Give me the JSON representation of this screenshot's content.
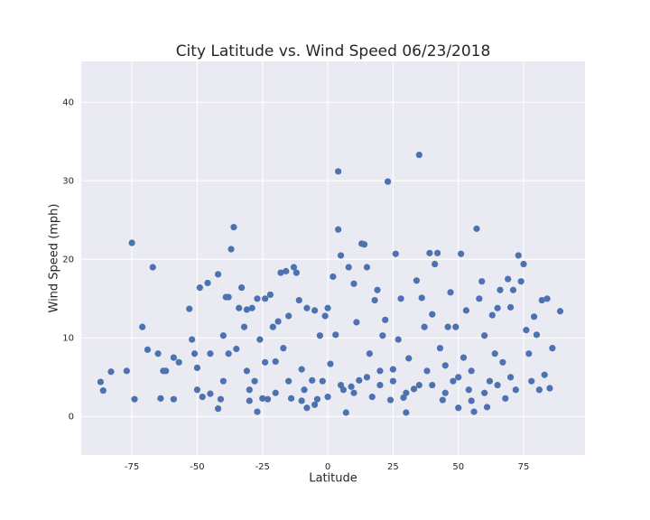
{
  "chart_data": {
    "type": "scatter",
    "title": "City Latitude vs. Wind Speed 06/23/2018",
    "x_label": "Latitude",
    "y_label": "Wind Speed (mph)",
    "xlim": [
      -94.4,
      98.5
    ],
    "ylim": [
      -4.9,
      45.2
    ],
    "xticks": [
      -75,
      -50,
      -25,
      0,
      25,
      50,
      75
    ],
    "yticks": [
      0,
      10,
      20,
      30,
      40
    ],
    "grid": true,
    "background": "#eaeaf2",
    "series": [
      {
        "color": "#4c72b0",
        "x": [
          -87,
          -86,
          -83,
          -77,
          -75,
          -74,
          -71,
          -69,
          -67,
          -65,
          -64,
          -63,
          -62,
          -59,
          -59,
          -57,
          -53,
          -52,
          -51,
          -50,
          -50,
          -49,
          -48,
          -46,
          -45,
          -45,
          -42,
          -42,
          -41,
          -40,
          -40,
          -39,
          -38,
          -38,
          -37,
          -36,
          -35,
          -34,
          -33,
          -32,
          -31,
          -31,
          -30,
          -29,
          -28,
          -27,
          -27,
          -26,
          -25,
          -24,
          -24,
          -23,
          -22,
          -21,
          -20,
          -19,
          -18,
          -17,
          -16,
          -15,
          -15,
          -14,
          -13,
          -12,
          -11,
          -10,
          -9,
          -8,
          -8,
          -6,
          -5,
          -4,
          -3,
          -2,
          -1,
          0,
          1,
          2,
          3,
          4,
          4,
          5,
          6,
          7,
          8,
          9,
          10,
          11,
          12,
          13,
          14,
          15,
          16,
          17,
          18,
          19,
          20,
          21,
          22,
          23,
          24,
          25,
          26,
          27,
          28,
          29,
          30,
          31,
          33,
          34,
          35,
          36,
          37,
          38,
          39,
          40,
          41,
          42,
          43,
          44,
          45,
          46,
          47,
          48,
          49,
          50,
          51,
          52,
          53,
          54,
          55,
          56,
          57,
          58,
          59,
          60,
          61,
          62,
          63,
          64,
          65,
          66,
          67,
          68,
          69,
          70,
          71,
          72,
          73,
          74,
          75,
          76,
          77,
          78,
          79,
          80,
          81,
          82,
          83,
          84,
          85,
          86,
          89,
          -20,
          -10,
          0,
          5,
          10,
          15,
          20,
          30,
          40,
          45,
          50,
          55,
          60,
          65,
          70,
          -30,
          -5,
          25,
          35
        ],
        "values": [
          4.4,
          3.3,
          5.7,
          5.8,
          22.1,
          2.2,
          11.4,
          8.5,
          19,
          8,
          2.3,
          5.8,
          5.8,
          7.5,
          2.2,
          6.9,
          13.7,
          9.8,
          8,
          6.2,
          3.4,
          16.4,
          2.5,
          17,
          8,
          2.9,
          18.1,
          1,
          2.2,
          10.3,
          4.5,
          15.2,
          15.2,
          8,
          21.3,
          24.1,
          8.6,
          13.8,
          16.4,
          11.4,
          13.6,
          5.8,
          3.4,
          13.8,
          4.5,
          0.6,
          15,
          9.8,
          2.3,
          15,
          6.9,
          2.2,
          15.5,
          11.4,
          7,
          12.1,
          18.3,
          8.7,
          18.5,
          12.8,
          4.5,
          2.3,
          19,
          18.3,
          14.8,
          6,
          3.4,
          13.8,
          1.1,
          4.6,
          13.5,
          2.2,
          10.3,
          4.5,
          12.8,
          13.8,
          6.7,
          17.8,
          10.4,
          31.2,
          23.8,
          20.5,
          3.4,
          0.5,
          19,
          3.8,
          16.9,
          12,
          4.6,
          22,
          21.9,
          19,
          8,
          2.5,
          14.8,
          16.1,
          5.8,
          10.3,
          12.3,
          29.9,
          2.1,
          4.5,
          20.7,
          9.8,
          15,
          2.4,
          0.5,
          7.4,
          3.5,
          17.3,
          33.3,
          15.1,
          11.4,
          5.8,
          20.8,
          13,
          19.4,
          20.8,
          8.7,
          2.1,
          6.5,
          11.4,
          15.8,
          4.5,
          11.4,
          1.1,
          20.7,
          7.5,
          13.5,
          3.4,
          5.8,
          0.6,
          23.9,
          15,
          17.2,
          10.3,
          1.2,
          4.5,
          12.9,
          8,
          13.8,
          16.1,
          6.9,
          2.3,
          17.5,
          13.9,
          16.1,
          3.4,
          20.5,
          17.2,
          19.4,
          11,
          8,
          4.5,
          12.7,
          10.4,
          3.4,
          14.8,
          5.3,
          15,
          3.6,
          8.7,
          13.4,
          3,
          2,
          2.5,
          4,
          3,
          5,
          4,
          3,
          4,
          3,
          5,
          2,
          3,
          4,
          5,
          2,
          1.5,
          6,
          4
        ]
      }
    ]
  }
}
